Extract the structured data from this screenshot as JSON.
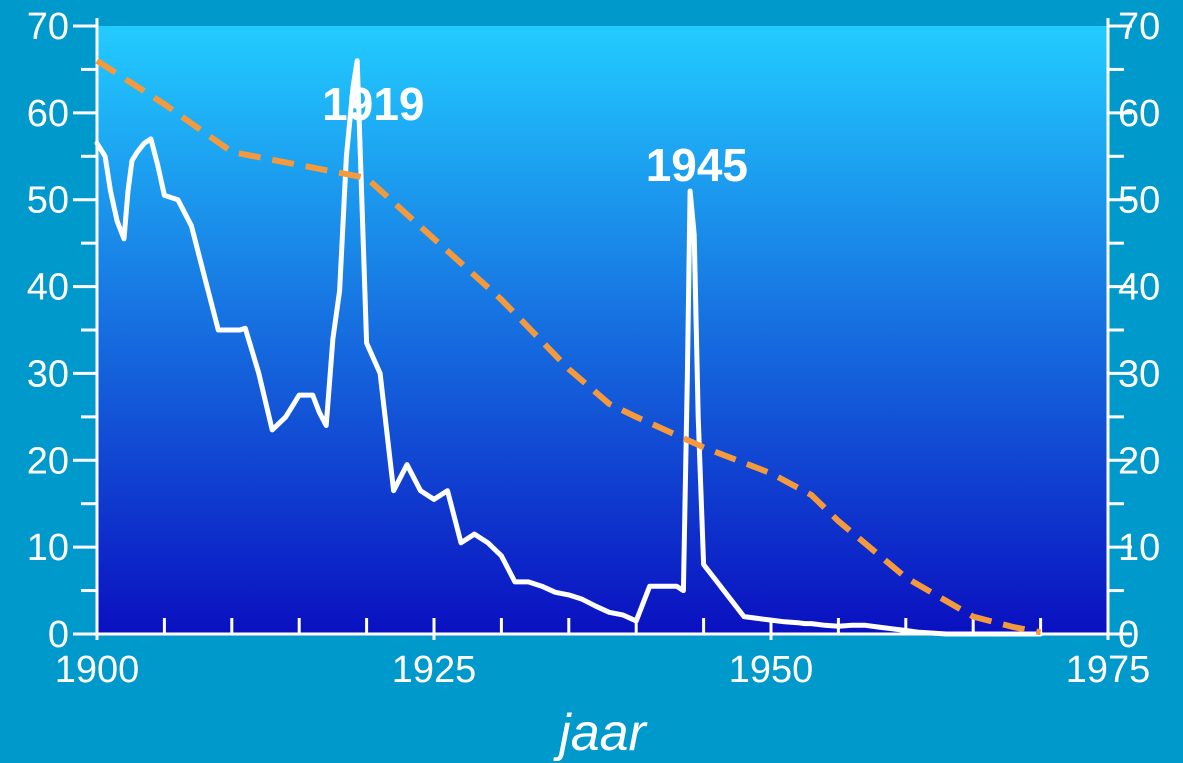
{
  "colors": {
    "page_background": "#0099cc",
    "plot_gradient_top": "#22ccff",
    "plot_gradient_bottom": "#0a10c0",
    "series_white": "#ffffff",
    "series_orange": "#f59a3c"
  },
  "chart_data": {
    "type": "line",
    "title": "",
    "xlabel": "jaar",
    "ylabel": "",
    "xlim": [
      1900,
      1975
    ],
    "ylim": [
      0,
      70
    ],
    "x_ticks": [
      1900,
      1925,
      1950,
      1975
    ],
    "x_minor_ticks": [
      1905,
      1910,
      1915,
      1920,
      1930,
      1935,
      1940,
      1945,
      1955,
      1960,
      1965,
      1970
    ],
    "y_ticks": [
      0,
      10,
      20,
      30,
      40,
      50,
      60,
      70
    ],
    "y_minor_ticks": [
      5,
      15,
      25,
      35,
      45,
      55,
      65
    ],
    "y_axes": [
      "left",
      "right"
    ],
    "grid": false,
    "legend": "none",
    "series": [
      {
        "style": "solid",
        "color": "#ffffff",
        "x": [
          1900,
          1900.6,
          1901,
          1901.5,
          1902,
          1902.3,
          1902.6,
          1903,
          1903.5,
          1904,
          1904.5,
          1905,
          1906,
          1907,
          1908,
          1909,
          1910,
          1910.6,
          1911,
          1912,
          1913,
          1914,
          1915,
          1916,
          1916.5,
          1917,
          1917.5,
          1918,
          1918.5,
          1919,
          1919.3,
          1920,
          1921,
          1922,
          1923,
          1924,
          1925,
          1926,
          1927,
          1928,
          1929,
          1930,
          1931,
          1932,
          1933,
          1934,
          1935,
          1936,
          1937,
          1938,
          1939,
          1940,
          1941,
          1942,
          1943,
          1943.5,
          1943.8,
          1944,
          1944.3,
          1944.6,
          1945,
          1946,
          1947,
          1948,
          1949,
          1950,
          1951,
          1952,
          1952.5,
          1953,
          1954,
          1955,
          1956,
          1957,
          1958,
          1959,
          1960,
          1961,
          1962,
          1963,
          1964,
          1965,
          1966,
          1967,
          1968,
          1969,
          1970
        ],
        "y": [
          56.5,
          55,
          51,
          47.5,
          45.5,
          51,
          54.5,
          55.5,
          56.5,
          57,
          54,
          50.5,
          50,
          47,
          41,
          35,
          35,
          35,
          35.2,
          30,
          23.5,
          25,
          27.5,
          27.5,
          25.5,
          24,
          34,
          39.5,
          55,
          63,
          66,
          33.5,
          30,
          16.5,
          19.5,
          16.5,
          15.5,
          16.5,
          10.5,
          11.5,
          10.5,
          9,
          6,
          6,
          5.5,
          4.8,
          4.5,
          4,
          3.2,
          2.5,
          2.2,
          1.5,
          5.5,
          5.5,
          5.5,
          5,
          30,
          51,
          46,
          25,
          8,
          6,
          4,
          2,
          1.8,
          1.6,
          1.4,
          1.3,
          1.2,
          1.2,
          1,
          0.9,
          1,
          1,
          0.8,
          0.6,
          0.4,
          0.2,
          0.1,
          0,
          0,
          0,
          0,
          0,
          0,
          0,
          0
        ]
      },
      {
        "style": "dashed",
        "color": "#f59a3c",
        "x": [
          1900,
          1905,
          1910,
          1915,
          1920,
          1925,
          1930,
          1935,
          1938,
          1940,
          1945,
          1950,
          1953,
          1955,
          1960,
          1965,
          1968,
          1970
        ],
        "y": [
          66,
          61,
          55.5,
          54,
          52.5,
          45.5,
          38.5,
          30.5,
          26.5,
          25,
          21.5,
          18.5,
          16,
          13,
          6.5,
          2,
          0.8,
          0.2
        ]
      }
    ],
    "annotations": [
      {
        "text": "1919",
        "x": 1920.5,
        "y": 61
      },
      {
        "text": "1945",
        "x": 1944.5,
        "y": 54
      }
    ]
  }
}
